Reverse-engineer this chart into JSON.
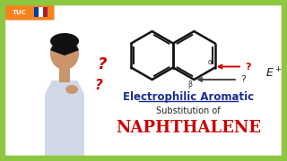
{
  "bg_color": "#ffffff",
  "border_color": "#8dc63f",
  "border_lw": 6,
  "title1": "Electrophilic Aromatic",
  "title2": "Substitution of",
  "title3": "NAPHTHALENE",
  "title1_color": "#1a2c8c",
  "title2_color": "#222222",
  "title3_color": "#cc0000",
  "q_color": "#cc0000",
  "arrow1_color": "#cc0000",
  "arrow2_color": "#444444",
  "ep_color": "#222222",
  "logo_bg": "#f5821f",
  "naph_color": "#111111",
  "person_skin": "#c8956c",
  "person_shirt": "#d0d8e8",
  "person_hair": "#111111"
}
